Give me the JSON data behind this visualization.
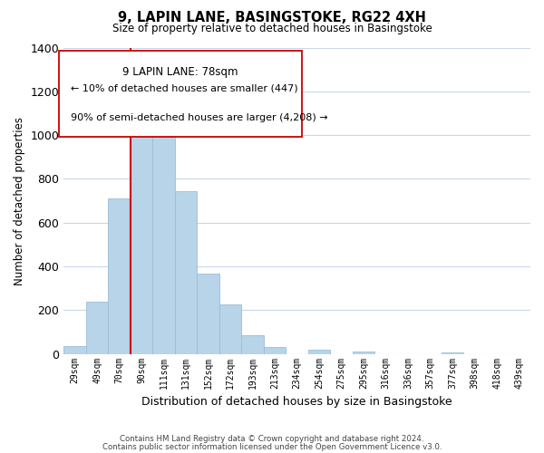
{
  "title": "9, LAPIN LANE, BASINGSTOKE, RG22 4XH",
  "subtitle": "Size of property relative to detached houses in Basingstoke",
  "xlabel": "Distribution of detached houses by size in Basingstoke",
  "ylabel": "Number of detached properties",
  "bar_labels": [
    "29sqm",
    "49sqm",
    "70sqm",
    "90sqm",
    "111sqm",
    "131sqm",
    "152sqm",
    "172sqm",
    "193sqm",
    "213sqm",
    "234sqm",
    "254sqm",
    "275sqm",
    "295sqm",
    "316sqm",
    "336sqm",
    "357sqm",
    "377sqm",
    "398sqm",
    "418sqm",
    "439sqm"
  ],
  "bar_values": [
    35,
    240,
    710,
    1095,
    1110,
    745,
    365,
    225,
    85,
    30,
    0,
    20,
    0,
    10,
    0,
    0,
    0,
    5,
    0,
    0,
    0
  ],
  "bar_color": "#b8d4e8",
  "bar_edge_color": "#9abdd8",
  "vline_color": "#cc0000",
  "vline_x": 2.5,
  "annotation_title": "9 LAPIN LANE: 78sqm",
  "annotation_line1": "← 10% of detached houses are smaller (447)",
  "annotation_line2": "90% of semi-detached houses are larger (4,208) →",
  "footnote1": "Contains HM Land Registry data © Crown copyright and database right 2024.",
  "footnote2": "Contains public sector information licensed under the Open Government Licence v3.0.",
  "ylim": [
    0,
    1400
  ],
  "yticks": [
    0,
    200,
    400,
    600,
    800,
    1000,
    1200,
    1400
  ],
  "background_color": "#ffffff",
  "grid_color": "#c8d8e8"
}
